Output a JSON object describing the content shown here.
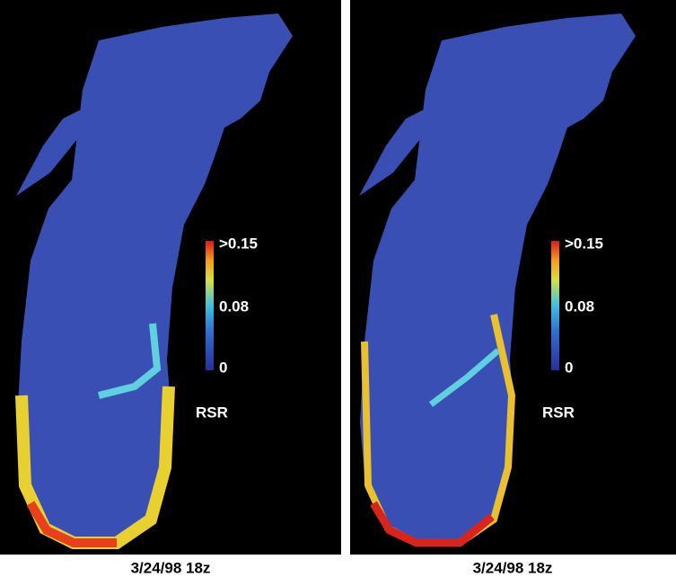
{
  "panels": [
    {
      "caption": "3/24/98 18z",
      "colorbar": {
        "title": "RSR",
        "labels": [
          ">0.15",
          "0.08",
          "0"
        ]
      }
    },
    {
      "caption": "3/24/98 18z",
      "colorbar": {
        "title": "RSR",
        "labels": [
          ">0.15",
          "0.08",
          "0"
        ]
      }
    }
  ]
}
